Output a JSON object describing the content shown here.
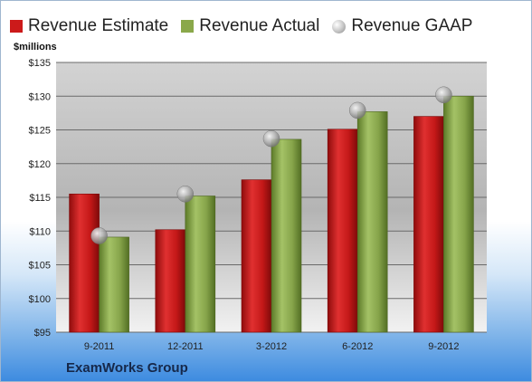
{
  "legend": [
    {
      "label": "Revenue Estimate",
      "color": "#cc1a1a"
    },
    {
      "label": "Revenue Actual",
      "color": "#8aa84a"
    },
    {
      "label": "Revenue GAAP",
      "color": "#b0b0b0"
    }
  ],
  "unit_label": "$millions",
  "company": "ExamWorks Group",
  "chart_data": {
    "type": "bar",
    "categories": [
      "9-2011",
      "12-2011",
      "3-2012",
      "6-2012",
      "9-2012"
    ],
    "series": [
      {
        "name": "Revenue Estimate",
        "values": [
          115.5,
          110.2,
          117.6,
          125.1,
          127.0
        ],
        "color": "#cc1a1a"
      },
      {
        "name": "Revenue Actual",
        "values": [
          109.1,
          115.2,
          123.6,
          127.7,
          130.0
        ],
        "color": "#8aa84a"
      },
      {
        "name": "Revenue GAAP",
        "values": [
          109.3,
          115.5,
          123.7,
          127.9,
          130.2
        ],
        "style": "marker"
      }
    ],
    "ylabel": "$millions",
    "ylim": [
      95,
      135
    ],
    "yticks": [
      95,
      100,
      105,
      110,
      115,
      120,
      125,
      130,
      135
    ],
    "ytick_labels": [
      "$95",
      "$100",
      "$105",
      "$110",
      "$115",
      "$120",
      "$125",
      "$130",
      "$135"
    ],
    "grid": true,
    "legend_position": "top"
  }
}
